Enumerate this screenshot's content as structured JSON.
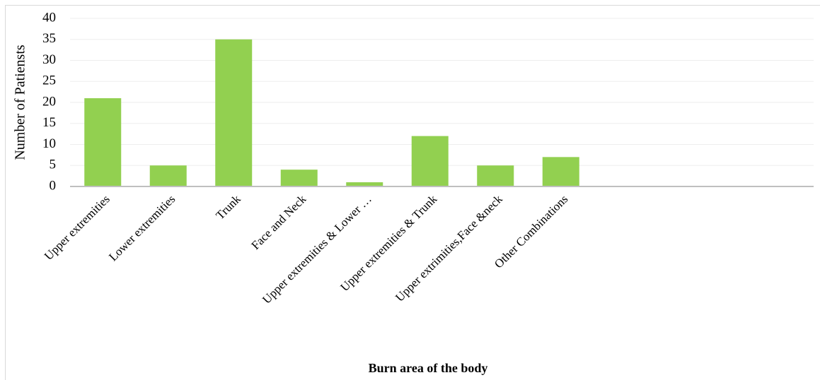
{
  "chart_data": {
    "type": "bar",
    "categories": [
      "Upper extremities",
      "Lower extremities",
      "Trunk",
      "Face and Neck",
      "Upper extremities & Lower …",
      "Upper extremities & Trunk",
      "Upper extrimities,Face &neck",
      "Other Combinations"
    ],
    "values": [
      21,
      5,
      35,
      4,
      1,
      12,
      5,
      7
    ],
    "color": "#92d050",
    "ylim": [
      0,
      40
    ],
    "yticks": [
      0,
      5,
      10,
      15,
      20,
      25,
      30,
      35,
      40
    ],
    "grid": true,
    "y_label": "Number of Patiensts",
    "x_label": "Burn area of the body"
  }
}
